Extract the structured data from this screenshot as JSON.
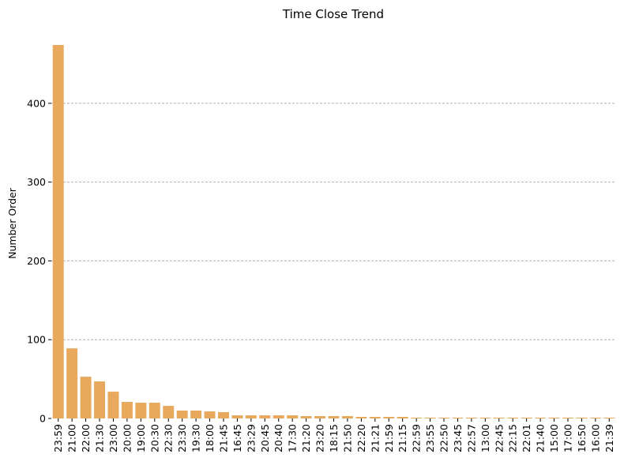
{
  "chart_data": {
    "type": "bar",
    "title": "Time Close Trend",
    "xlabel": "",
    "ylabel": "Number Order",
    "ylim": [
      0,
      478
    ],
    "yticks": [
      0,
      100,
      200,
      300,
      400
    ],
    "grid": "horizontal-dashed",
    "bar_color": "#e8a95d",
    "grid_color": "#b0b0b0",
    "categories": [
      "23:59",
      "21:00",
      "22:00",
      "21:30",
      "23:00",
      "20:00",
      "19:00",
      "20:30",
      "22:30",
      "23:30",
      "19:30",
      "18:00",
      "21:45",
      "16:45",
      "23:29",
      "20:45",
      "20:40",
      "17:30",
      "21:20",
      "23:20",
      "18:15",
      "21:50",
      "22:20",
      "21:21",
      "21:59",
      "21:15",
      "22:59",
      "23:55",
      "22:50",
      "23:45",
      "22:57",
      "13:00",
      "22:45",
      "22:15",
      "22:01",
      "21:40",
      "15:00",
      "17:00",
      "16:50",
      "16:00",
      "21:39"
    ],
    "values": [
      474,
      89,
      53,
      47,
      34,
      21,
      20,
      20,
      16,
      10,
      10,
      9,
      8,
      4,
      4,
      4,
      4,
      4,
      3,
      3,
      3,
      3,
      2,
      2,
      2,
      2,
      1,
      1,
      1,
      1,
      1,
      1,
      1,
      1,
      1,
      1,
      1,
      1,
      1,
      1,
      1
    ]
  }
}
